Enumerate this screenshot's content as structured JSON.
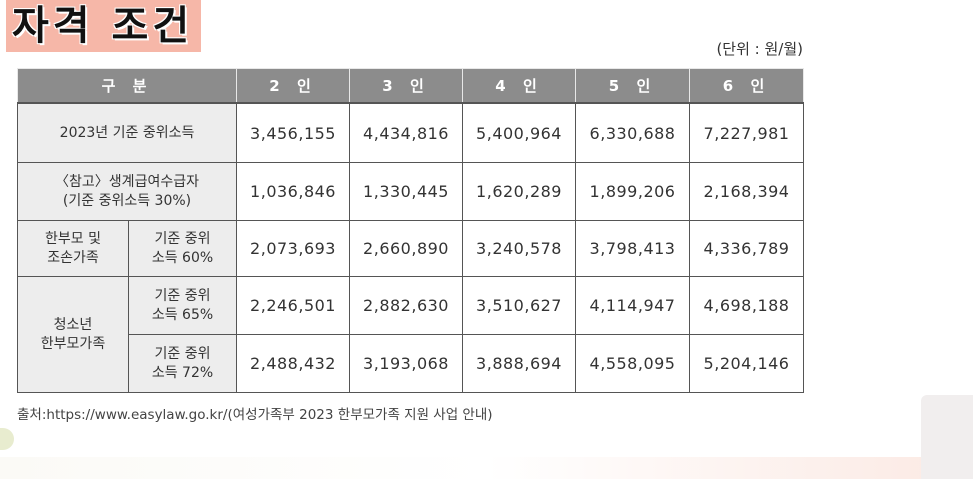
{
  "title": "자격 조건",
  "unit_note": "(단위 : 원/월)",
  "table": {
    "headers": [
      "구 분",
      "2 인",
      "3 인",
      "4 인",
      "5 인",
      "6 인"
    ],
    "rows": [
      {
        "label": "2023년 기준 중위소득",
        "values": [
          "3,456,155",
          "4,434,816",
          "5,400,964",
          "6,330,688",
          "7,227,981"
        ]
      },
      {
        "label_line1": "〈참고〉생계급여수급자",
        "label_line2": "(기준 중위소득 30%)",
        "values": [
          "1,036,846",
          "1,330,445",
          "1,620,289",
          "1,899,206",
          "2,168,394"
        ]
      },
      {
        "group_line1": "한부모 및",
        "group_line2": "조손가족",
        "label_line1": "기준 중위",
        "label_line2": "소득 60%",
        "values": [
          "2,073,693",
          "2,660,890",
          "3,240,578",
          "3,798,413",
          "4,336,789"
        ]
      },
      {
        "group_line1": "청소년",
        "group_line2": "한부모가족",
        "label_line1": "기준 중위",
        "label_line2": "소득 65%",
        "values": [
          "2,246,501",
          "2,882,630",
          "3,510,627",
          "4,114,947",
          "4,698,188"
        ]
      },
      {
        "label_line1": "기준 중위",
        "label_line2": "소득 72%",
        "values": [
          "2,488,432",
          "3,193,068",
          "3,888,694",
          "4,558,095",
          "5,204,146"
        ]
      }
    ]
  },
  "source": "출처:https://www.easylaw.go.kr/(여성가족부 2023 한부모가족 지원 사업 안내)"
}
